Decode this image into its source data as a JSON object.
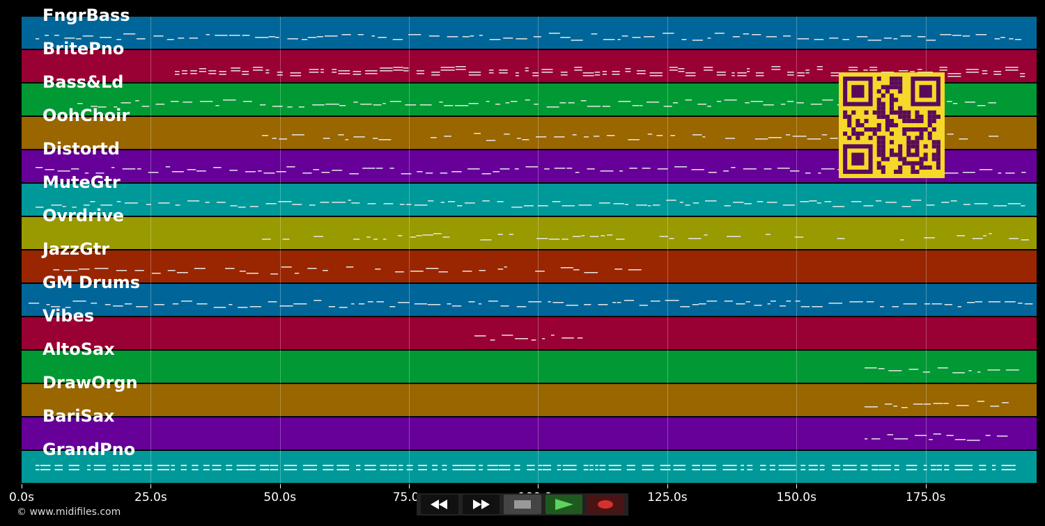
{
  "tracks": [
    {
      "name": "FngrBass",
      "color": "#006699"
    },
    {
      "name": "BritePno",
      "color": "#990033"
    },
    {
      "name": "Bass&Ld",
      "color": "#009933"
    },
    {
      "name": "OohChoir",
      "color": "#996600"
    },
    {
      "name": "Distortd",
      "color": "#660099"
    },
    {
      "name": "MuteGtr",
      "color": "#009999"
    },
    {
      "name": "Ovrdrive",
      "color": "#999900"
    },
    {
      "name": "JazzGtr",
      "color": "#992600"
    },
    {
      "name": "GM Drums",
      "color": "#006699"
    },
    {
      "name": "Vibes",
      "color": "#990033"
    },
    {
      "name": "AltoSax",
      "color": "#009933"
    },
    {
      "name": "DrawOrgn",
      "color": "#996600"
    },
    {
      "name": "BariSax",
      "color": "#660099"
    },
    {
      "name": "GrandPno",
      "color": "#009999"
    }
  ],
  "time_axis": {
    "labels": [
      "0.0s",
      "25.0s",
      "50.0s",
      "75.0s",
      "100.0s",
      "125.0s",
      "150.0s",
      "175.0s"
    ],
    "max_seconds": 196.5
  },
  "copyright": "© www.midifiles.com",
  "transport": {
    "rewind_icon": "rewind-icon",
    "fast_forward_icon": "fast-forward-icon",
    "stop_icon": "stop-icon",
    "play_icon": "play-icon",
    "record_icon": "record-icon"
  },
  "qr_code_color": "#f5d82a"
}
